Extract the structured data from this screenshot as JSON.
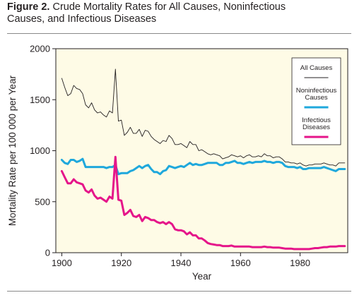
{
  "figure": {
    "label": "Figure 2.",
    "title_line1": "Crude Mortality Rates for All Causes, Noninfectious",
    "title_line2": "Causes, and Infectious Diseases"
  },
  "colors": {
    "plot_background": "#fefbe6",
    "all_causes": "#231f20",
    "noninfectious": "#1fa8dc",
    "infectious": "#e5158a"
  },
  "chart_data": {
    "type": "line",
    "xlabel": "Year",
    "ylabel": "Mortality Rate per 100 000 per Year",
    "xlim": [
      1898,
      1996
    ],
    "ylim": [
      0,
      2000
    ],
    "x_ticks": [
      1900,
      1920,
      1940,
      1960,
      1980
    ],
    "y_ticks": [
      0,
      500,
      1000,
      1500,
      2000
    ],
    "legend_position": "top-right",
    "series": [
      {
        "name": "All Causes",
        "line": "thin",
        "points": [
          [
            1900,
            1710
          ],
          [
            1901,
            1620
          ],
          [
            1902,
            1540
          ],
          [
            1903,
            1560
          ],
          [
            1904,
            1640
          ],
          [
            1905,
            1610
          ],
          [
            1906,
            1600
          ],
          [
            1907,
            1560
          ],
          [
            1908,
            1450
          ],
          [
            1909,
            1420
          ],
          [
            1910,
            1470
          ],
          [
            1911,
            1400
          ],
          [
            1912,
            1370
          ],
          [
            1913,
            1380
          ],
          [
            1914,
            1350
          ],
          [
            1915,
            1330
          ],
          [
            1916,
            1390
          ],
          [
            1917,
            1370
          ],
          [
            1918,
            1800
          ],
          [
            1919,
            1290
          ],
          [
            1920,
            1300
          ],
          [
            1921,
            1150
          ],
          [
            1922,
            1180
          ],
          [
            1923,
            1230
          ],
          [
            1924,
            1170
          ],
          [
            1925,
            1170
          ],
          [
            1926,
            1210
          ],
          [
            1927,
            1140
          ],
          [
            1928,
            1200
          ],
          [
            1929,
            1190
          ],
          [
            1930,
            1140
          ],
          [
            1931,
            1110
          ],
          [
            1932,
            1090
          ],
          [
            1933,
            1070
          ],
          [
            1934,
            1100
          ],
          [
            1935,
            1090
          ],
          [
            1936,
            1150
          ],
          [
            1937,
            1120
          ],
          [
            1938,
            1060
          ],
          [
            1939,
            1060
          ],
          [
            1940,
            1070
          ],
          [
            1941,
            1050
          ],
          [
            1942,
            1030
          ],
          [
            1943,
            1090
          ],
          [
            1944,
            1060
          ],
          [
            1945,
            1060
          ],
          [
            1946,
            1000
          ],
          [
            1947,
            1010
          ],
          [
            1948,
            990
          ],
          [
            1949,
            970
          ],
          [
            1950,
            960
          ],
          [
            1951,
            970
          ],
          [
            1952,
            960
          ],
          [
            1953,
            950
          ],
          [
            1954,
            920
          ],
          [
            1955,
            930
          ],
          [
            1956,
            940
          ],
          [
            1957,
            960
          ],
          [
            1958,
            950
          ],
          [
            1959,
            940
          ],
          [
            1960,
            950
          ],
          [
            1961,
            930
          ],
          [
            1962,
            950
          ],
          [
            1963,
            960
          ],
          [
            1964,
            940
          ],
          [
            1965,
            940
          ],
          [
            1966,
            950
          ],
          [
            1967,
            940
          ],
          [
            1968,
            970
          ],
          [
            1969,
            950
          ],
          [
            1970,
            950
          ],
          [
            1971,
            930
          ],
          [
            1972,
            940
          ],
          [
            1973,
            940
          ],
          [
            1974,
            920
          ],
          [
            1975,
            890
          ],
          [
            1976,
            890
          ],
          [
            1977,
            880
          ],
          [
            1978,
            880
          ],
          [
            1979,
            870
          ],
          [
            1980,
            880
          ],
          [
            1981,
            860
          ],
          [
            1982,
            850
          ],
          [
            1983,
            860
          ],
          [
            1984,
            860
          ],
          [
            1985,
            870
          ],
          [
            1986,
            870
          ],
          [
            1987,
            870
          ],
          [
            1988,
            880
          ],
          [
            1989,
            870
          ],
          [
            1990,
            860
          ],
          [
            1991,
            860
          ],
          [
            1992,
            850
          ],
          [
            1993,
            880
          ],
          [
            1994,
            880
          ],
          [
            1995,
            880
          ]
        ]
      },
      {
        "name": "Noninfectious Causes",
        "line": "thick",
        "points": [
          [
            1900,
            910
          ],
          [
            1901,
            880
          ],
          [
            1902,
            870
          ],
          [
            1903,
            910
          ],
          [
            1904,
            910
          ],
          [
            1905,
            890
          ],
          [
            1906,
            900
          ],
          [
            1907,
            920
          ],
          [
            1908,
            840
          ],
          [
            1909,
            840
          ],
          [
            1910,
            840
          ],
          [
            1911,
            840
          ],
          [
            1912,
            840
          ],
          [
            1913,
            840
          ],
          [
            1914,
            840
          ],
          [
            1915,
            830
          ],
          [
            1916,
            840
          ],
          [
            1917,
            840
          ],
          [
            1918,
            860
          ],
          [
            1919,
            770
          ],
          [
            1920,
            780
          ],
          [
            1921,
            780
          ],
          [
            1922,
            780
          ],
          [
            1923,
            800
          ],
          [
            1924,
            810
          ],
          [
            1925,
            830
          ],
          [
            1926,
            850
          ],
          [
            1927,
            830
          ],
          [
            1928,
            850
          ],
          [
            1929,
            860
          ],
          [
            1930,
            820
          ],
          [
            1931,
            790
          ],
          [
            1932,
            790
          ],
          [
            1933,
            770
          ],
          [
            1934,
            800
          ],
          [
            1935,
            810
          ],
          [
            1936,
            850
          ],
          [
            1937,
            840
          ],
          [
            1938,
            830
          ],
          [
            1939,
            840
          ],
          [
            1940,
            850
          ],
          [
            1941,
            840
          ],
          [
            1942,
            860
          ],
          [
            1943,
            880
          ],
          [
            1944,
            860
          ],
          [
            1945,
            870
          ],
          [
            1946,
            860
          ],
          [
            1947,
            860
          ],
          [
            1948,
            870
          ],
          [
            1949,
            880
          ],
          [
            1950,
            880
          ],
          [
            1951,
            880
          ],
          [
            1952,
            880
          ],
          [
            1953,
            860
          ],
          [
            1954,
            860
          ],
          [
            1955,
            880
          ],
          [
            1956,
            880
          ],
          [
            1957,
            890
          ],
          [
            1958,
            900
          ],
          [
            1959,
            880
          ],
          [
            1960,
            880
          ],
          [
            1961,
            870
          ],
          [
            1962,
            880
          ],
          [
            1963,
            890
          ],
          [
            1964,
            880
          ],
          [
            1965,
            890
          ],
          [
            1966,
            890
          ],
          [
            1967,
            890
          ],
          [
            1968,
            900
          ],
          [
            1969,
            890
          ],
          [
            1970,
            890
          ],
          [
            1971,
            880
          ],
          [
            1972,
            890
          ],
          [
            1973,
            890
          ],
          [
            1974,
            880
          ],
          [
            1975,
            850
          ],
          [
            1976,
            840
          ],
          [
            1977,
            840
          ],
          [
            1978,
            840
          ],
          [
            1979,
            830
          ],
          [
            1980,
            840
          ],
          [
            1981,
            820
          ],
          [
            1982,
            820
          ],
          [
            1983,
            830
          ],
          [
            1984,
            830
          ],
          [
            1985,
            830
          ],
          [
            1986,
            830
          ],
          [
            1987,
            830
          ],
          [
            1988,
            840
          ],
          [
            1989,
            830
          ],
          [
            1990,
            820
          ],
          [
            1991,
            810
          ],
          [
            1992,
            800
          ],
          [
            1993,
            820
          ],
          [
            1994,
            820
          ],
          [
            1995,
            820
          ]
        ]
      },
      {
        "name": "Infectious Diseases",
        "line": "thick",
        "points": [
          [
            1900,
            800
          ],
          [
            1901,
            740
          ],
          [
            1902,
            680
          ],
          [
            1903,
            680
          ],
          [
            1904,
            720
          ],
          [
            1905,
            690
          ],
          [
            1906,
            680
          ],
          [
            1907,
            670
          ],
          [
            1908,
            610
          ],
          [
            1909,
            590
          ],
          [
            1910,
            620
          ],
          [
            1911,
            560
          ],
          [
            1912,
            530
          ],
          [
            1913,
            540
          ],
          [
            1914,
            520
          ],
          [
            1915,
            500
          ],
          [
            1916,
            550
          ],
          [
            1917,
            530
          ],
          [
            1918,
            940
          ],
          [
            1919,
            520
          ],
          [
            1920,
            510
          ],
          [
            1921,
            370
          ],
          [
            1922,
            390
          ],
          [
            1923,
            420
          ],
          [
            1924,
            360
          ],
          [
            1925,
            350
          ],
          [
            1926,
            370
          ],
          [
            1927,
            310
          ],
          [
            1928,
            350
          ],
          [
            1929,
            340
          ],
          [
            1930,
            320
          ],
          [
            1931,
            320
          ],
          [
            1932,
            300
          ],
          [
            1933,
            290
          ],
          [
            1934,
            300
          ],
          [
            1935,
            280
          ],
          [
            1936,
            300
          ],
          [
            1937,
            280
          ],
          [
            1938,
            230
          ],
          [
            1939,
            220
          ],
          [
            1940,
            220
          ],
          [
            1941,
            210
          ],
          [
            1942,
            180
          ],
          [
            1943,
            200
          ],
          [
            1944,
            170
          ],
          [
            1945,
            170
          ],
          [
            1946,
            140
          ],
          [
            1947,
            140
          ],
          [
            1948,
            120
          ],
          [
            1949,
            95
          ],
          [
            1950,
            85
          ],
          [
            1951,
            80
          ],
          [
            1952,
            75
          ],
          [
            1953,
            75
          ],
          [
            1954,
            65
          ],
          [
            1955,
            65
          ],
          [
            1956,
            65
          ],
          [
            1957,
            70
          ],
          [
            1958,
            60
          ],
          [
            1959,
            60
          ],
          [
            1960,
            60
          ],
          [
            1961,
            60
          ],
          [
            1962,
            60
          ],
          [
            1963,
            60
          ],
          [
            1964,
            55
          ],
          [
            1965,
            55
          ],
          [
            1966,
            55
          ],
          [
            1967,
            55
          ],
          [
            1968,
            60
          ],
          [
            1969,
            55
          ],
          [
            1970,
            55
          ],
          [
            1971,
            50
          ],
          [
            1972,
            50
          ],
          [
            1973,
            50
          ],
          [
            1974,
            45
          ],
          [
            1975,
            40
          ],
          [
            1976,
            40
          ],
          [
            1977,
            40
          ],
          [
            1978,
            35
          ],
          [
            1979,
            35
          ],
          [
            1980,
            35
          ],
          [
            1981,
            35
          ],
          [
            1982,
            35
          ],
          [
            1983,
            35
          ],
          [
            1984,
            40
          ],
          [
            1985,
            45
          ],
          [
            1986,
            45
          ],
          [
            1987,
            50
          ],
          [
            1988,
            55
          ],
          [
            1989,
            55
          ],
          [
            1990,
            60
          ],
          [
            1991,
            60
          ],
          [
            1992,
            60
          ],
          [
            1993,
            65
          ],
          [
            1994,
            65
          ],
          [
            1995,
            65
          ]
        ]
      }
    ],
    "legend": [
      {
        "label_line1": "All Causes",
        "label_line2": ""
      },
      {
        "label_line1": "Noninfectious",
        "label_line2": "Causes"
      },
      {
        "label_line1": "Infectious",
        "label_line2": "Diseases"
      }
    ]
  }
}
